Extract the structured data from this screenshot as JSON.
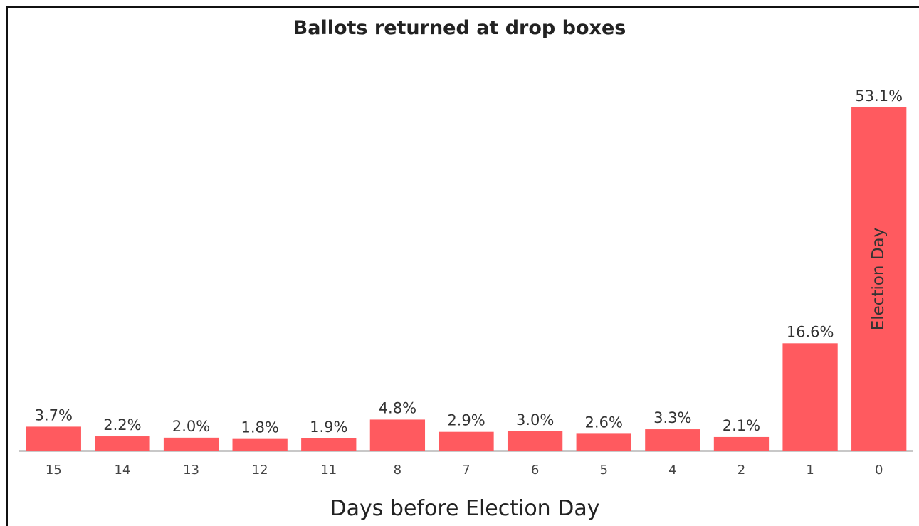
{
  "chart_data": {
    "type": "bar",
    "title": "Ballots returned at drop boxes",
    "xlabel": "Days before Election Day",
    "ylabel": "",
    "categories": [
      "15",
      "14",
      "13",
      "12",
      "11",
      "8",
      "7",
      "6",
      "5",
      "4",
      "2",
      "1",
      "0"
    ],
    "values": [
      3.7,
      2.2,
      2.0,
      1.8,
      1.9,
      4.8,
      2.9,
      3.0,
      2.6,
      3.3,
      2.1,
      16.6,
      53.1
    ],
    "value_labels": [
      "3.7%",
      "2.2%",
      "2.0%",
      "1.8%",
      "1.9%",
      "4.8%",
      "2.9%",
      "3.0%",
      "2.6%",
      "3.3%",
      "2.1%",
      "16.6%",
      "53.1%"
    ],
    "ylim": [
      0,
      53.1
    ],
    "grid": false,
    "legend": "none",
    "bar_color": "#ff5a5f",
    "annotation": {
      "text": "Election Day",
      "category": "0"
    }
  }
}
